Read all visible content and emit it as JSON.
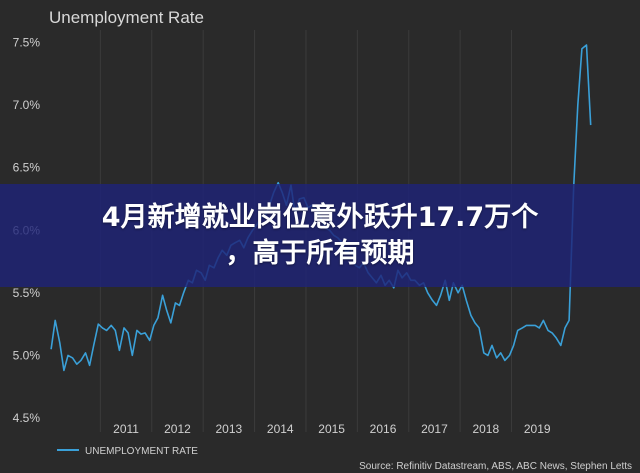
{
  "banner": {
    "line1": "4月新增就业岗位意外跃升17.7万个",
    "line2": "，高于所有预期"
  },
  "colors": {
    "background": "#2a2a2a",
    "line": "#3aa0d8",
    "banner": "#1e2378",
    "grid": "#3b3b3b"
  },
  "chart_data": {
    "type": "line",
    "title": "Unemployment Rate",
    "source": "Source: Refinitiv Datastream, ABS, ABC News, Stephen Letts",
    "legend": {
      "label": "UNEMPLOYMENT RATE",
      "position": "bottom-left"
    },
    "grid": {
      "vertical": true,
      "horizontal": false
    },
    "ylim": [
      4.5,
      7.6
    ],
    "xlim": [
      2010.0,
      2021.15
    ],
    "yticks": [
      {
        "value": 4.5,
        "label": "4.5%"
      },
      {
        "value": 5.0,
        "label": "5.0%"
      },
      {
        "value": 5.5,
        "label": "5.5%"
      },
      {
        "value": 6.0,
        "label": "6.0%"
      },
      {
        "value": 6.5,
        "label": "6.5%"
      },
      {
        "value": 7.0,
        "label": "7.0%"
      },
      {
        "value": 7.5,
        "label": "7.5%"
      }
    ],
    "xticks": [
      {
        "value": 2011,
        "label": "2011"
      },
      {
        "value": 2012,
        "label": "2012"
      },
      {
        "value": 2013,
        "label": "2013"
      },
      {
        "value": 2014,
        "label": "2014"
      },
      {
        "value": 2015,
        "label": "2015"
      },
      {
        "value": 2016,
        "label": "2016"
      },
      {
        "value": 2017,
        "label": "2017"
      },
      {
        "value": 2018,
        "label": "2018"
      },
      {
        "value": 2019,
        "label": "2019"
      }
    ],
    "series": [
      {
        "name": "UNEMPLOYMENT RATE",
        "x": [
          2010.04,
          2010.12,
          2010.21,
          2010.29,
          2010.37,
          2010.46,
          2010.54,
          2010.62,
          2010.71,
          2010.79,
          2010.87,
          2010.96,
          2011.04,
          2011.12,
          2011.21,
          2011.29,
          2011.37,
          2011.46,
          2011.54,
          2011.62,
          2011.71,
          2011.79,
          2011.87,
          2011.96,
          2012.04,
          2012.12,
          2012.21,
          2012.29,
          2012.37,
          2012.46,
          2012.54,
          2012.62,
          2012.71,
          2012.79,
          2012.87,
          2012.96,
          2013.04,
          2013.12,
          2013.21,
          2013.29,
          2013.37,
          2013.46,
          2013.54,
          2013.62,
          2013.71,
          2013.79,
          2013.87,
          2013.96,
          2014.04,
          2014.12,
          2014.21,
          2014.29,
          2014.37,
          2014.46,
          2014.54,
          2014.62,
          2014.71,
          2014.79,
          2014.87,
          2014.96,
          2015.04,
          2015.12,
          2015.21,
          2015.29,
          2015.37,
          2015.46,
          2015.54,
          2015.62,
          2015.71,
          2015.79,
          2015.87,
          2015.96,
          2016.04,
          2016.12,
          2016.21,
          2016.29,
          2016.37,
          2016.46,
          2016.54,
          2016.62,
          2016.71,
          2016.79,
          2016.87,
          2016.96,
          2017.04,
          2017.12,
          2017.21,
          2017.29,
          2017.37,
          2017.46,
          2017.54,
          2017.62,
          2017.71,
          2017.79,
          2017.87,
          2017.96,
          2018.04,
          2018.12,
          2018.21,
          2018.29,
          2018.37,
          2018.46,
          2018.54,
          2018.62,
          2018.71,
          2018.79,
          2018.87,
          2018.96,
          2019.04,
          2019.12,
          2019.21,
          2019.29,
          2019.37,
          2019.46,
          2019.54,
          2019.62,
          2019.71,
          2019.79,
          2019.87,
          2019.96,
          2020.04,
          2020.12,
          2020.21,
          2020.29,
          2020.37,
          2020.46,
          2020.54,
          2020.62,
          2020.71,
          2020.79,
          2020.87,
          2020.96,
          2021.04
        ],
        "values": [
          5.05,
          5.28,
          5.1,
          4.88,
          5.0,
          4.98,
          4.93,
          4.96,
          5.02,
          4.92,
          5.08,
          5.25,
          5.22,
          5.2,
          5.24,
          5.2,
          5.04,
          5.22,
          5.18,
          5.0,
          5.2,
          5.17,
          5.18,
          5.12,
          5.24,
          5.3,
          5.48,
          5.36,
          5.26,
          5.42,
          5.4,
          5.5,
          5.6,
          5.58,
          5.68,
          5.66,
          5.6,
          5.72,
          5.7,
          5.78,
          5.84,
          5.8,
          5.88,
          5.9,
          5.92,
          5.86,
          5.94,
          6.0,
          6.04,
          6.1,
          6.12,
          6.2,
          6.3,
          6.38,
          6.3,
          6.2,
          6.36,
          6.12,
          6.25,
          6.26,
          6.18,
          6.2,
          6.16,
          6.1,
          6.02,
          6.0,
          5.96,
          5.94,
          5.9,
          5.82,
          5.86,
          5.72,
          5.7,
          5.74,
          5.66,
          5.62,
          5.58,
          5.64,
          5.56,
          5.6,
          5.54,
          5.68,
          5.62,
          5.66,
          5.6,
          5.6,
          5.56,
          5.58,
          5.5,
          5.44,
          5.4,
          5.48,
          5.6,
          5.44,
          5.58,
          5.5,
          5.56,
          5.44,
          5.32,
          5.26,
          5.22,
          5.02,
          5.0,
          5.08,
          4.98,
          5.02,
          4.96,
          5.0,
          5.08,
          5.2,
          5.22,
          5.24,
          5.24,
          5.24,
          5.22,
          5.28,
          5.2,
          5.18,
          5.14,
          5.08,
          5.22,
          5.28,
          6.35,
          7.0,
          7.45,
          7.48,
          6.84,
          null,
          null,
          null,
          null,
          null,
          null
        ]
      }
    ]
  }
}
